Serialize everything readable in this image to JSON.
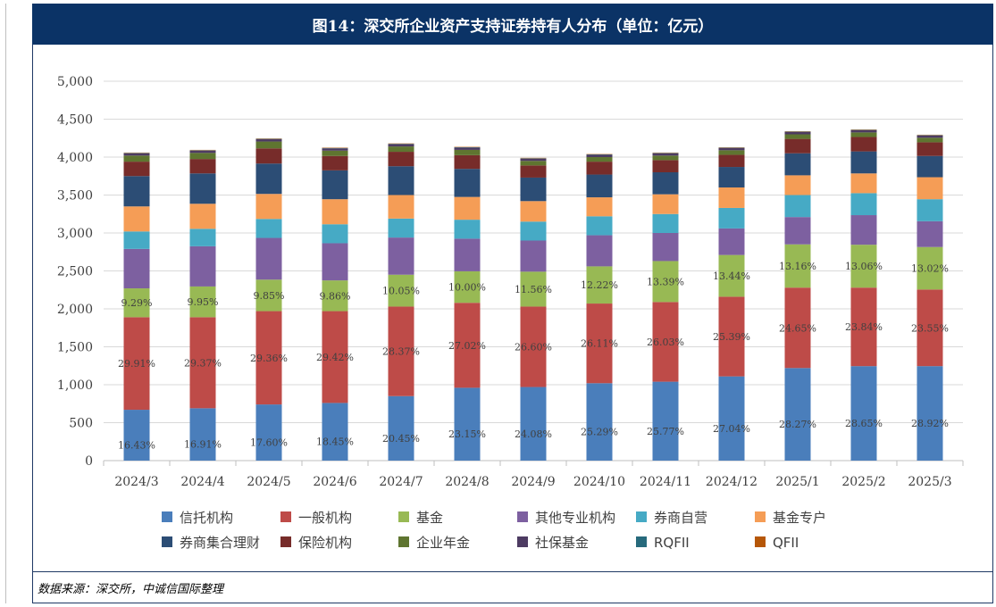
{
  "title": "图14：深交所企业资产支持证券持有人分布（单位：亿元）",
  "source": "数据来源：深交所，中诚信国际整理",
  "chart_data": {
    "type": "bar",
    "stacked": true,
    "categories": [
      "2024/3",
      "2024/4",
      "2024/5",
      "2024/6",
      "2024/7",
      "2024/8",
      "2024/9",
      "2024/10",
      "2024/11",
      "2024/12",
      "2025/1",
      "2025/2",
      "2025/3"
    ],
    "ylim": [
      0,
      5000
    ],
    "yticks": [
      0,
      500,
      1000,
      1500,
      2000,
      2500,
      3000,
      3500,
      4000,
      4500,
      5000
    ],
    "ytick_labels": [
      "0",
      "500",
      "1,000",
      "1,500",
      "2,000",
      "2,500",
      "3,000",
      "3,500",
      "4,000",
      "4,500",
      "5,000"
    ],
    "legend_position": "bottom",
    "series": [
      {
        "name": "信托机构",
        "color": "#4a7ebb",
        "values": [
          670,
          690,
          740,
          760,
          850,
          960,
          970,
          1020,
          1040,
          1110,
          1220,
          1245,
          1245
        ],
        "labels": [
          "16.43%",
          "16.91%",
          "17.60%",
          "18.45%",
          "20.45%",
          "23.15%",
          "24.08%",
          "25.29%",
          "25.77%",
          "27.04%",
          "28.27%",
          "28.65%",
          "28.92%"
        ]
      },
      {
        "name": "一般机构",
        "color": "#be4b48",
        "values": [
          1220,
          1200,
          1230,
          1210,
          1180,
          1120,
          1060,
          1050,
          1050,
          1050,
          1060,
          1035,
          1010
        ],
        "labels": [
          "29.91%",
          "29.37%",
          "29.36%",
          "29.42%",
          "28.37%",
          "27.02%",
          "26.60%",
          "26.11%",
          "26.03%",
          "25.39%",
          "24.65%",
          "23.84%",
          "23.55%"
        ]
      },
      {
        "name": "基金",
        "color": "#98b954",
        "values": [
          380,
          405,
          415,
          405,
          420,
          415,
          460,
          490,
          540,
          550,
          570,
          565,
          560
        ],
        "labels": [
          "9.29%",
          "9.95%",
          "9.85%",
          "9.86%",
          "10.05%",
          "10.00%",
          "11.56%",
          "12.22%",
          "13.39%",
          "13.44%",
          "13.16%",
          "13.06%",
          "13.02%"
        ]
      },
      {
        "name": "其他专业机构",
        "color": "#7d60a0",
        "values": [
          520,
          530,
          550,
          490,
          490,
          430,
          410,
          410,
          370,
          350,
          360,
          390,
          340
        ]
      },
      {
        "name": "券商自营",
        "color": "#46aac5",
        "values": [
          230,
          230,
          250,
          250,
          250,
          250,
          250,
          250,
          250,
          270,
          290,
          290,
          290
        ]
      },
      {
        "name": "基金专户",
        "color": "#f59d56",
        "values": [
          330,
          330,
          330,
          330,
          310,
          300,
          270,
          250,
          260,
          270,
          260,
          260,
          290
        ]
      },
      {
        "name": "券商集合理财",
        "color": "#2c4d75",
        "values": [
          400,
          400,
          400,
          380,
          380,
          370,
          310,
          300,
          290,
          270,
          290,
          290,
          280
        ]
      },
      {
        "name": "保险机构",
        "color": "#772c2a",
        "values": [
          190,
          190,
          200,
          190,
          190,
          180,
          160,
          170,
          160,
          160,
          190,
          190,
          180
        ]
      },
      {
        "name": "企业年金",
        "color": "#5f7530",
        "values": [
          80,
          80,
          90,
          70,
          70,
          70,
          60,
          60,
          60,
          60,
          60,
          60,
          60
        ]
      },
      {
        "name": "社保基金",
        "color": "#4d3b62",
        "values": [
          30,
          30,
          30,
          30,
          30,
          30,
          30,
          30,
          30,
          30,
          30,
          30,
          30
        ]
      },
      {
        "name": "RQFII",
        "color": "#276a7c",
        "values": [
          5,
          5,
          5,
          5,
          5,
          5,
          5,
          5,
          5,
          5,
          5,
          5,
          5
        ]
      },
      {
        "name": "QFII",
        "color": "#b65708",
        "values": [
          5,
          5,
          5,
          5,
          5,
          5,
          5,
          5,
          5,
          5,
          5,
          5,
          5
        ]
      }
    ]
  }
}
